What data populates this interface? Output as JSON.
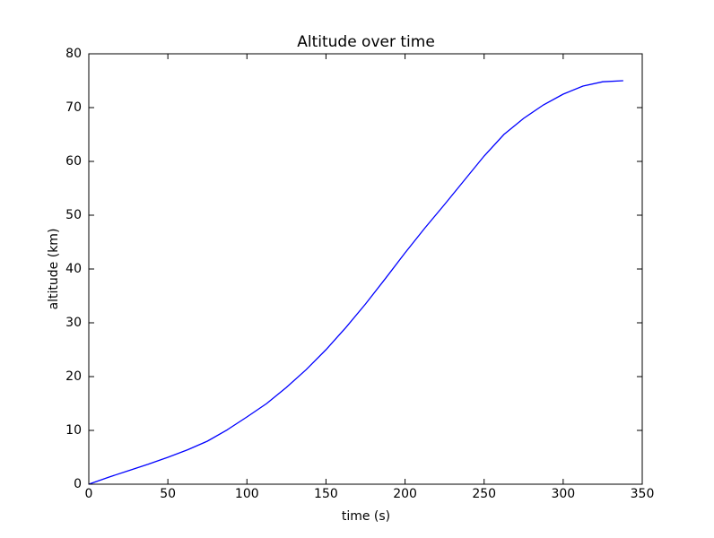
{
  "chart_data": {
    "type": "line",
    "title": "Altitude over time",
    "xlabel": "time (s)",
    "ylabel": "altitude (km)",
    "x": [
      0,
      12.5,
      25,
      37.5,
      50,
      62.5,
      75,
      87.5,
      100,
      112.5,
      125,
      137.5,
      150,
      162.5,
      175,
      187.5,
      200,
      212.5,
      225,
      237.5,
      250,
      262.5,
      275,
      287.5,
      300,
      312.5,
      325,
      338
    ],
    "series": [
      {
        "name": "altitude",
        "color": "#0000ff",
        "values": [
          0,
          1.3,
          2.5,
          3.7,
          5,
          6.4,
          8,
          10.1,
          12.5,
          15,
          18,
          21.3,
          25,
          29.1,
          33.5,
          38.2,
          43,
          47.6,
          52,
          56.5,
          61,
          65,
          68,
          70.5,
          72.5,
          74,
          74.8,
          75
        ]
      }
    ],
    "xlim": [
      0,
      350
    ],
    "xticks": [
      0,
      50,
      100,
      150,
      200,
      250,
      300,
      350
    ],
    "ylim": [
      0,
      80
    ],
    "yticks": [
      0,
      10,
      20,
      30,
      40,
      50,
      60,
      70,
      80
    ],
    "grid": false
  }
}
